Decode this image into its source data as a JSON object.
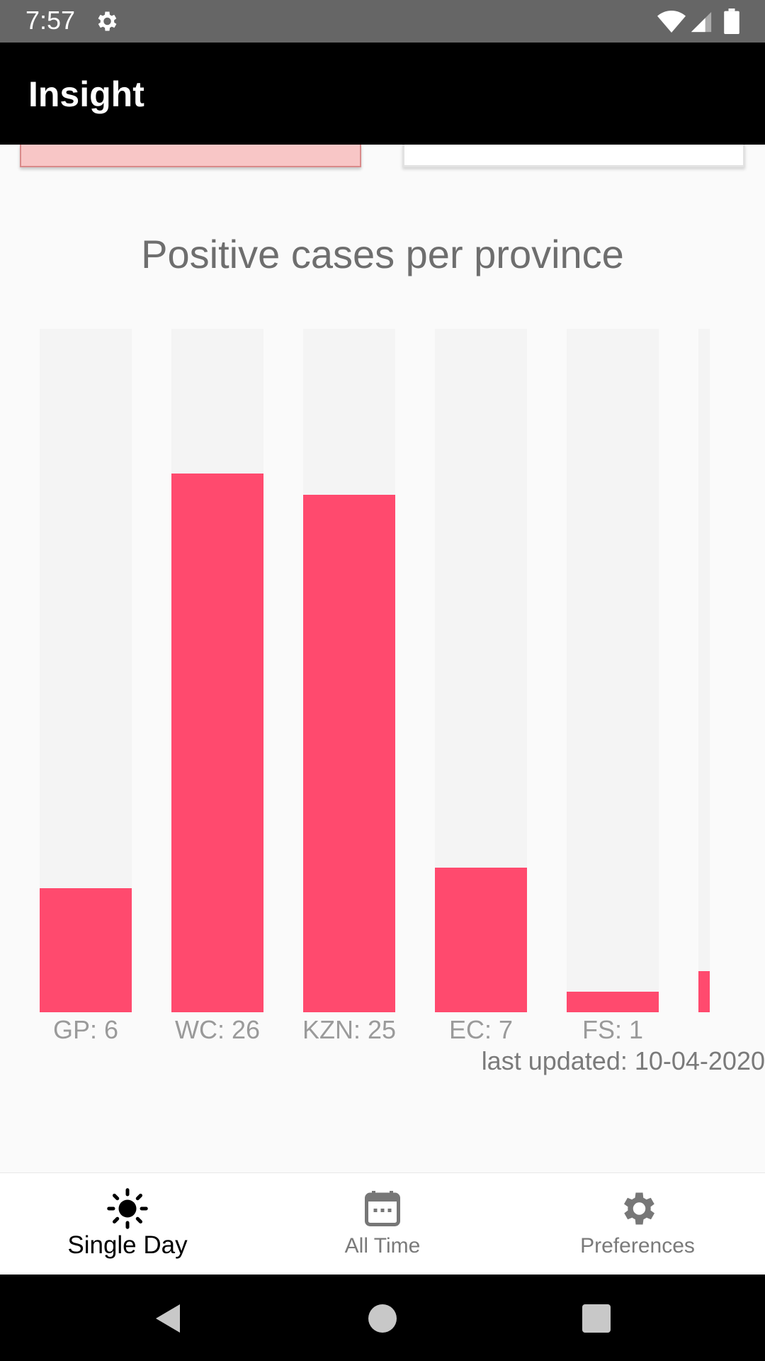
{
  "status_bar": {
    "time": "7:57"
  },
  "app_bar": {
    "title": "Insight"
  },
  "chart_data": {
    "type": "bar",
    "title": "Positive cases per province",
    "categories": [
      "GP",
      "WC",
      "KZN",
      "EC",
      "FS",
      ""
    ],
    "tick_labels": [
      "GP: 6",
      "WC: 26",
      "KZN: 25",
      "EC: 7",
      "FS: 1",
      ""
    ],
    "values": [
      6,
      26,
      25,
      7,
      1,
      2
    ],
    "ylim": [
      0,
      33
    ],
    "grid": false,
    "colors": {
      "bar": "#ff4a6e",
      "track": "#f4f4f4"
    }
  },
  "last_updated": "last updated: 10-04-2020",
  "bottom_nav": {
    "items": [
      {
        "label": "Single Day",
        "icon": "sun-icon",
        "active": true
      },
      {
        "label": "All Time",
        "icon": "calendar-icon",
        "active": false
      },
      {
        "label": "Preferences",
        "icon": "gear-icon",
        "active": false
      }
    ]
  },
  "system_nav": {
    "icons": [
      "back-icon",
      "home-icon",
      "recents-icon"
    ]
  }
}
